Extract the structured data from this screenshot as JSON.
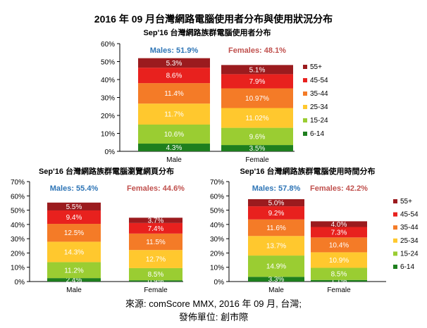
{
  "title": "2016 年 09 月台灣網路電腦使用者分布與使用狀況分布",
  "source_line1": "來源: comScore MMX, 2016 年 09 月, 台灣;",
  "source_line2": "發佈單位: 創市際",
  "colors": {
    "6-14": "#1e7f1e",
    "15-24": "#9acd32",
    "25-34": "#ffc82e",
    "35-44": "#f47b27",
    "45-54": "#e8211e",
    "55+": "#9b1b1e",
    "males_label": "#2e75b6",
    "females_label": "#c0504d"
  },
  "chart_data": [
    {
      "type": "bar",
      "stacked": true,
      "title": "Sep'16 台灣網路族群電腦使用者分布",
      "categories": [
        "Male",
        "Female"
      ],
      "ylim": [
        0,
        60
      ],
      "yticks": [
        "0%",
        "10%",
        "20%",
        "30%",
        "40%",
        "50%",
        "60%"
      ],
      "totals": [
        "Males: 51.9%",
        "Females: 48.1%"
      ],
      "legend": [
        "55+",
        "45-54",
        "35-44",
        "25-34",
        "15-24",
        "6-14"
      ],
      "legend_position": "right",
      "series": [
        {
          "name": "6-14",
          "values": [
            4.3,
            3.5
          ],
          "labels": [
            "4.3%",
            "3.5%"
          ]
        },
        {
          "name": "15-24",
          "values": [
            10.6,
            9.6
          ],
          "labels": [
            "10.6%",
            "9.6%"
          ]
        },
        {
          "name": "25-34",
          "values": [
            11.7,
            11.02
          ],
          "labels": [
            "11.7%",
            "11.02%"
          ]
        },
        {
          "name": "35-44",
          "values": [
            11.4,
            10.97
          ],
          "labels": [
            "11.4%",
            "10.97%"
          ]
        },
        {
          "name": "45-54",
          "values": [
            8.6,
            7.9
          ],
          "labels": [
            "8.6%",
            "7.9%"
          ]
        },
        {
          "name": "55+",
          "values": [
            5.3,
            5.1
          ],
          "labels": [
            "5.3%",
            "5.1%"
          ]
        }
      ]
    },
    {
      "type": "bar",
      "stacked": true,
      "title": "Sep'16 台灣網路族群電腦瀏覽網頁分布",
      "categories": [
        "Male",
        "Female"
      ],
      "ylim": [
        0,
        70
      ],
      "yticks": [
        "0%",
        "10%",
        "20%",
        "30%",
        "40%",
        "50%",
        "60%",
        "70%"
      ],
      "totals": [
        "Males: 55.4%",
        "Females: 44.6%"
      ],
      "legend": [],
      "series": [
        {
          "name": "6-14",
          "values": [
            2.4,
            0.9
          ],
          "labels": [
            "2.4%",
            "0.9%"
          ]
        },
        {
          "name": "15-24",
          "values": [
            11.2,
            8.5
          ],
          "labels": [
            "11.2%",
            "8.5%"
          ]
        },
        {
          "name": "25-34",
          "values": [
            14.3,
            12.7
          ],
          "labels": [
            "14.3%",
            "12.7%"
          ]
        },
        {
          "name": "35-44",
          "values": [
            12.5,
            11.5
          ],
          "labels": [
            "12.5%",
            "11.5%"
          ]
        },
        {
          "name": "45-54",
          "values": [
            9.4,
            7.4
          ],
          "labels": [
            "9.4%",
            "7.4%"
          ]
        },
        {
          "name": "55+",
          "values": [
            5.5,
            3.7
          ],
          "labels": [
            "5.5%",
            "3.7%"
          ]
        }
      ]
    },
    {
      "type": "bar",
      "stacked": true,
      "title": "Sep'16 台灣網路族群電腦使用時間分布",
      "categories": [
        "Male",
        "Female"
      ],
      "ylim": [
        0,
        70
      ],
      "yticks": [
        "0%",
        "10%",
        "20%",
        "30%",
        "40%",
        "50%",
        "60%",
        "70%"
      ],
      "totals": [
        "Males: 57.8%",
        "Females: 42.2%"
      ],
      "legend": [
        "55+",
        "45-54",
        "35-44",
        "25-34",
        "15-24",
        "6-14"
      ],
      "legend_position": "right",
      "series": [
        {
          "name": "6-14",
          "values": [
            3.3,
            1.1
          ],
          "labels": [
            "3.3%",
            "1.1%"
          ]
        },
        {
          "name": "15-24",
          "values": [
            14.9,
            8.5
          ],
          "labels": [
            "14.9%",
            "8.5%"
          ]
        },
        {
          "name": "25-34",
          "values": [
            13.7,
            10.9
          ],
          "labels": [
            "13.7%",
            "10.9%"
          ]
        },
        {
          "name": "35-44",
          "values": [
            11.6,
            10.4
          ],
          "labels": [
            "11.6%",
            "10.4%"
          ]
        },
        {
          "name": "45-54",
          "values": [
            9.2,
            7.3
          ],
          "labels": [
            "9.2%",
            "7.3%"
          ]
        },
        {
          "name": "55+",
          "values": [
            5.0,
            4.0
          ],
          "labels": [
            "5.0%",
            "4.0%"
          ]
        }
      ]
    }
  ]
}
